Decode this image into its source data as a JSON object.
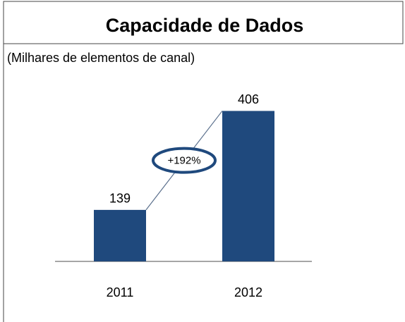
{
  "chart_data": {
    "type": "bar",
    "title": "Capacidade de Dados",
    "subtitle": "(Milhares de elementos de canal)",
    "categories": [
      "2011",
      "2012"
    ],
    "values": [
      139,
      406
    ],
    "color": "#1f497d",
    "annotation": "+192%"
  }
}
